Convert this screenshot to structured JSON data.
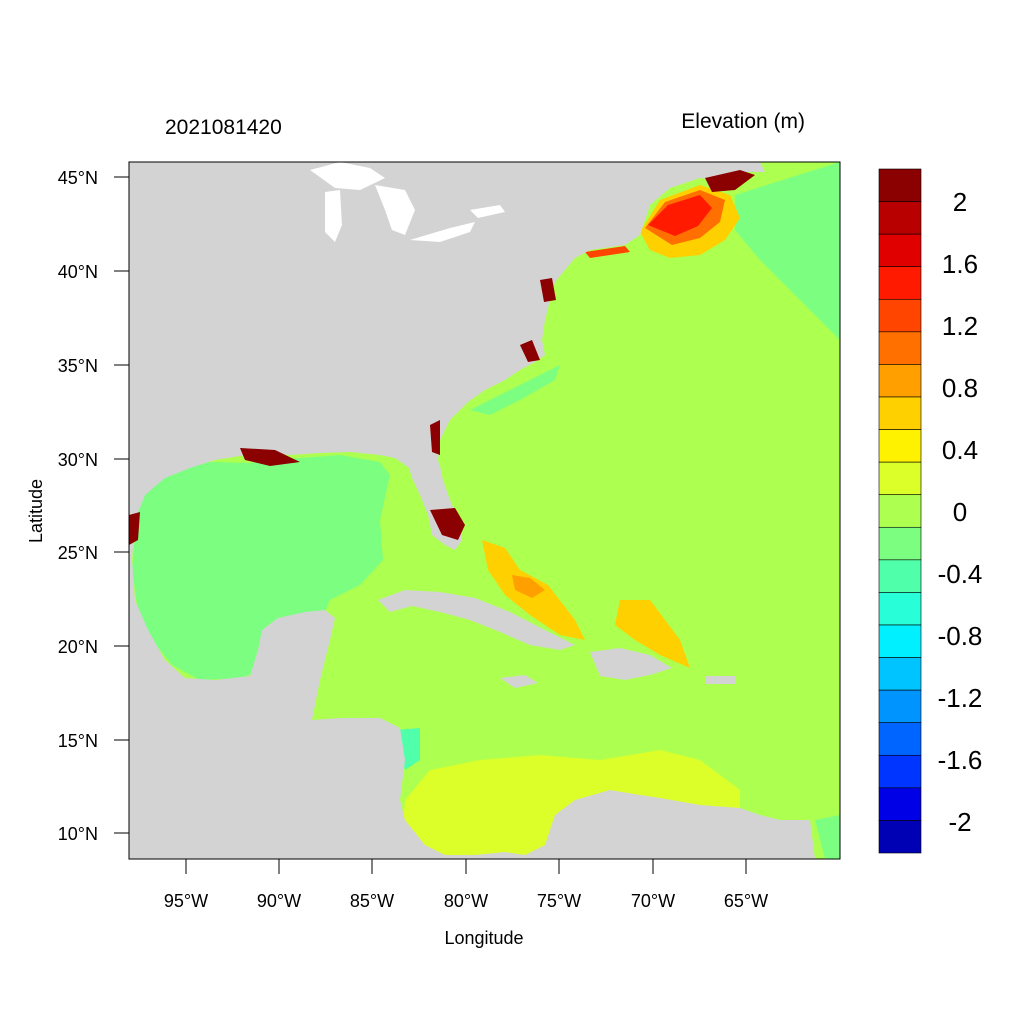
{
  "header": {
    "left_title": "2021081420",
    "right_title": "Elevation (m)"
  },
  "axes": {
    "xlabel": "Longitude",
    "ylabel": "Latitude",
    "x_ticks": [
      "95°W",
      "90°W",
      "85°W",
      "80°W",
      "75°W",
      "70°W",
      "65°W"
    ],
    "y_ticks": [
      "45°N",
      "40°N",
      "35°N",
      "30°N",
      "25°N",
      "20°N",
      "15°N",
      "10°N"
    ],
    "lon_range": [
      -98,
      -60
    ],
    "lat_range": [
      8.5,
      46
    ]
  },
  "colorbar": {
    "labels": [
      "2",
      "1.6",
      "1.2",
      "0.8",
      "0.4",
      "0",
      "-0.4",
      "-0.8",
      "-1.2",
      "-1.6",
      "-2"
    ],
    "colors_top_to_bottom": [
      "#8b0000",
      "#b80000",
      "#e00000",
      "#ff1a00",
      "#ff4500",
      "#ff7000",
      "#ffa000",
      "#ffd000",
      "#fff200",
      "#dcff2a",
      "#adff50",
      "#7cff80",
      "#50ffaa",
      "#28ffd8",
      "#00f0ff",
      "#00c4ff",
      "#0094ff",
      "#0064ff",
      "#0034ff",
      "#0000e6",
      "#0000b4"
    ]
  },
  "map_colors": {
    "land": "#d3d3d3",
    "ocean_default": "#adff50",
    "gulf_of_mexico": "#7cff80",
    "northeast_surge": "#ff4500"
  }
}
